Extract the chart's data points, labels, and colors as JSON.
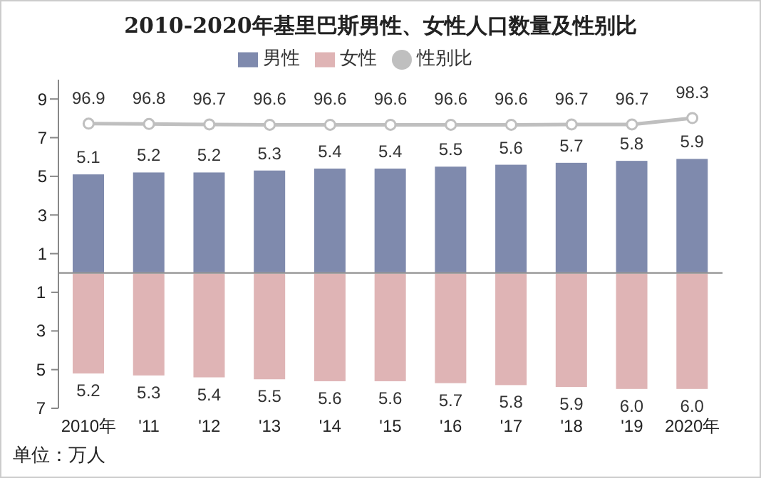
{
  "chart_data": {
    "type": "bar",
    "title": "2010-2020年基里巴斯男性、女性人口数量及性别比",
    "categories": [
      "2010年",
      "'11",
      "'12",
      "'13",
      "'14",
      "'15",
      "'16",
      "'17",
      "'18",
      "'19",
      "2020年"
    ],
    "series": [
      {
        "name": "男性",
        "color": "#7f8aad",
        "values": [
          5.1,
          5.2,
          5.2,
          5.3,
          5.4,
          5.4,
          5.5,
          5.6,
          5.7,
          5.8,
          5.9
        ],
        "value_labels": [
          "5.1",
          "5.2",
          "5.2",
          "5.3",
          "5.4",
          "5.4",
          "5.5",
          "5.6",
          "5.7",
          "5.8",
          "5.9"
        ]
      },
      {
        "name": "女性",
        "axis": "y3",
        "color": "#dfb4b5",
        "values": [
          5.2,
          5.3,
          5.4,
          5.5,
          5.6,
          5.6,
          5.7,
          5.8,
          5.9,
          6.0,
          6.0
        ],
        "value_labels": [
          "5.2",
          "5.3",
          "5.4",
          "5.5",
          "5.6",
          "5.6",
          "5.7",
          "5.8",
          "5.9",
          "6.0",
          "6.0"
        ]
      },
      {
        "name": "性别比",
        "type": "line",
        "axis": "y2",
        "color": "#bfbfbf",
        "values": [
          96.9,
          96.8,
          96.7,
          96.6,
          96.6,
          96.6,
          96.6,
          96.6,
          96.7,
          96.7,
          98.3
        ],
        "value_labels": [
          "96.9",
          "96.8",
          "96.7",
          "96.6",
          "96.6",
          "96.6",
          "96.6",
          "96.6",
          "96.7",
          "96.7",
          "98.3"
        ]
      }
    ],
    "ylim": [
      -7,
      10
    ],
    "yticks": [
      1,
      3,
      5,
      7,
      9
    ],
    "y3lim": [
      7,
      -10
    ],
    "y3ticks": [
      1,
      3,
      5,
      7
    ],
    "stacked": true,
    "y2lim": [
      25,
      108
    ],
    "tick_labels": "xy",
    "marker": "circle",
    "legend": "top",
    "grid": false,
    "annotations": [
      "单位：万人"
    ]
  }
}
